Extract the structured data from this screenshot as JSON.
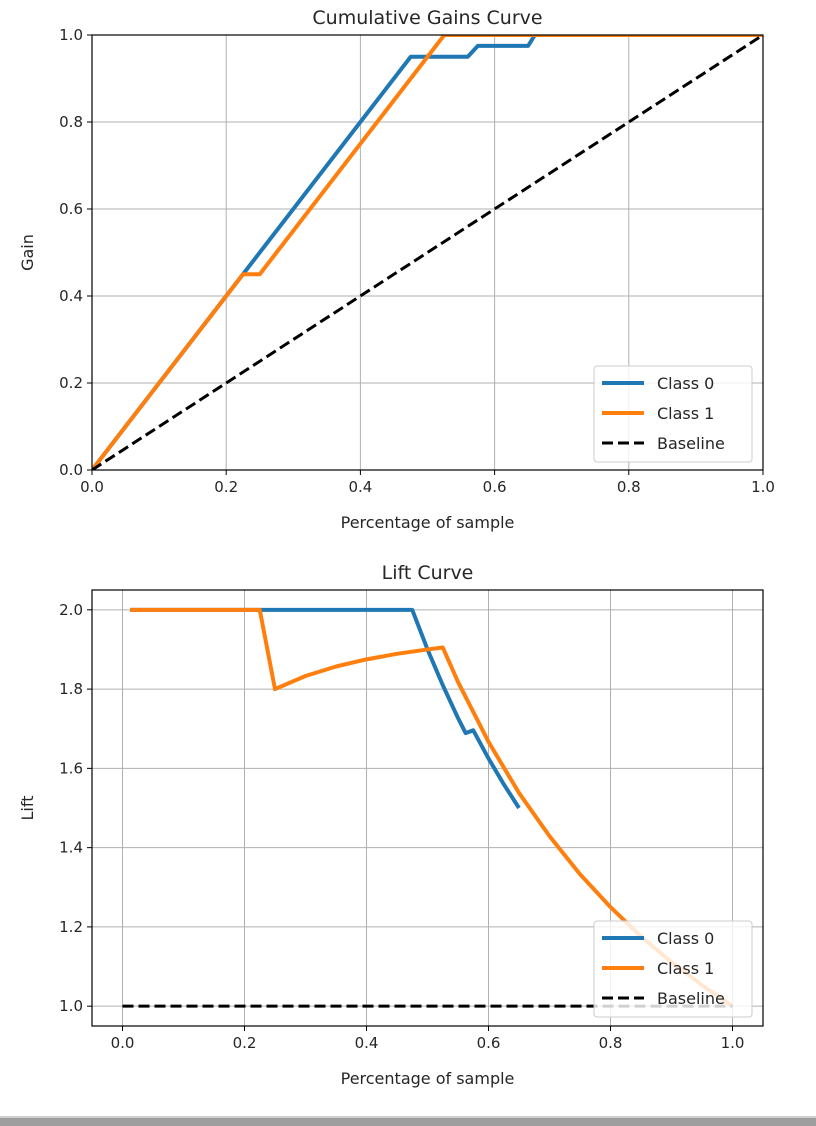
{
  "chart_data": [
    {
      "type": "line",
      "title": "Cumulative Gains Curve",
      "xlabel": "Percentage of sample",
      "ylabel": "Gain",
      "xlim": [
        0.0,
        1.0
      ],
      "ylim": [
        0.0,
        1.0
      ],
      "xticks": [
        "0.0",
        "0.2",
        "0.4",
        "0.6",
        "0.8",
        "1.0"
      ],
      "yticks": [
        "0.0",
        "0.2",
        "0.4",
        "0.6",
        "0.8",
        "1.0"
      ],
      "grid": true,
      "legend_position": "lower right",
      "series": [
        {
          "name": "Class 0",
          "color": "#1f77b4",
          "x": [
            0.0,
            0.225,
            0.475,
            0.56,
            0.575,
            0.65,
            0.66,
            1.0
          ],
          "y": [
            0.0,
            0.45,
            0.95,
            0.95,
            0.975,
            0.975,
            1.0,
            1.0
          ]
        },
        {
          "name": "Class 1",
          "color": "#ff7f0e",
          "x": [
            0.0,
            0.225,
            0.25,
            0.525,
            1.0
          ],
          "y": [
            0.0,
            0.45,
            0.45,
            1.0,
            1.0
          ]
        },
        {
          "name": "Baseline",
          "color": "#000000",
          "dashed": true,
          "x": [
            0.0,
            1.0
          ],
          "y": [
            0.0,
            1.0
          ]
        }
      ]
    },
    {
      "type": "line",
      "title": "Lift Curve",
      "xlabel": "Percentage of sample",
      "ylabel": "Lift",
      "xlim": [
        -0.05,
        1.05
      ],
      "ylim": [
        0.95,
        2.05
      ],
      "xticks": [
        "0.0",
        "0.2",
        "0.4",
        "0.6",
        "0.8",
        "1.0"
      ],
      "yticks": [
        "1.0",
        "1.2",
        "1.4",
        "1.6",
        "1.8",
        "2.0"
      ],
      "grid": true,
      "legend_position": "lower right",
      "series": [
        {
          "name": "Class 0",
          "color": "#1f77b4",
          "x": [
            0.0125,
            0.225,
            0.475,
            0.5,
            0.525,
            0.55,
            0.5625,
            0.575,
            0.6,
            0.625,
            0.65
          ],
          "y": [
            2.0,
            2.0,
            2.0,
            1.9,
            1.81,
            1.727,
            1.689,
            1.696,
            1.625,
            1.56,
            1.5
          ]
        },
        {
          "name": "Class 1",
          "color": "#ff7f0e",
          "x": [
            0.0125,
            0.225,
            0.25,
            0.3,
            0.35,
            0.4,
            0.45,
            0.5,
            0.525,
            0.55,
            0.6,
            0.65,
            0.7,
            0.75,
            0.8,
            0.85,
            0.9,
            0.95,
            1.0
          ],
          "y": [
            2.0,
            2.0,
            1.8,
            1.833,
            1.857,
            1.875,
            1.889,
            1.9,
            1.905,
            1.818,
            1.667,
            1.538,
            1.429,
            1.333,
            1.25,
            1.176,
            1.111,
            1.053,
            1.0
          ]
        },
        {
          "name": "Baseline",
          "color": "#000000",
          "dashed": true,
          "x": [
            0.0,
            1.0
          ],
          "y": [
            1.0,
            1.0
          ]
        }
      ]
    }
  ]
}
